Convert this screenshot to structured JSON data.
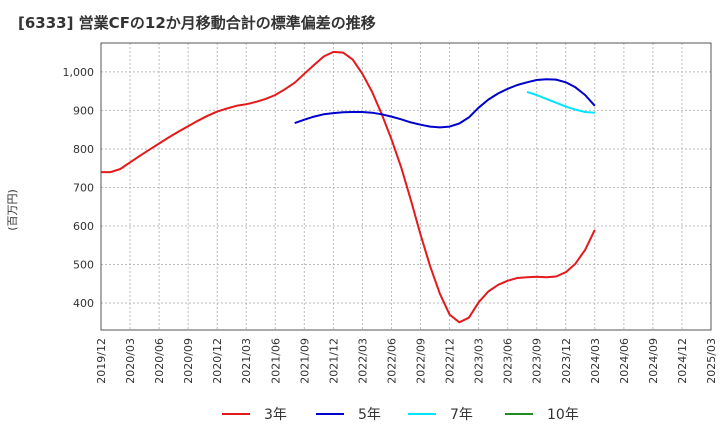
{
  "chart_data": {
    "type": "line",
    "title": "[6333]  営業CFの12か月移動合計の標準偏差の推移",
    "ylabel": "(百万円)",
    "xlabel": "",
    "ylim": [
      330,
      1075
    ],
    "yticks": [
      400,
      500,
      600,
      700,
      800,
      900,
      "1,000"
    ],
    "ytick_values": [
      400,
      500,
      600,
      700,
      800,
      900,
      1000
    ],
    "xticks": [
      "2019/12",
      "2020/03",
      "2020/06",
      "2020/09",
      "2020/12",
      "2021/03",
      "2021/06",
      "2021/09",
      "2021/12",
      "2022/03",
      "2022/06",
      "2022/09",
      "2022/12",
      "2023/03",
      "2023/06",
      "2023/09",
      "2023/12",
      "2024/03",
      "2024/06",
      "2024/09",
      "2024/12",
      "2025/03"
    ],
    "grid": true,
    "legend_position": "bottom",
    "series": [
      {
        "name": "3年",
        "color": "#e31a1c",
        "x": [
          "2019/12",
          "2020/01",
          "2020/02",
          "2020/03",
          "2020/04",
          "2020/05",
          "2020/06",
          "2020/07",
          "2020/08",
          "2020/09",
          "2020/10",
          "2020/11",
          "2020/12",
          "2021/01",
          "2021/02",
          "2021/03",
          "2021/04",
          "2021/05",
          "2021/06",
          "2021/07",
          "2021/08",
          "2021/09",
          "2021/10",
          "2021/11",
          "2021/12",
          "2022/01",
          "2022/02",
          "2022/03",
          "2022/04",
          "2022/05",
          "2022/06",
          "2022/07",
          "2022/08",
          "2022/09",
          "2022/10",
          "2022/11",
          "2022/12",
          "2023/01",
          "2023/02",
          "2023/03",
          "2023/04",
          "2023/05",
          "2023/06",
          "2023/07",
          "2023/08",
          "2023/09",
          "2023/10",
          "2023/11",
          "2023/12",
          "2024/01",
          "2024/02",
          "2024/03"
        ],
        "values": [
          740,
          740,
          748,
          765,
          782,
          798,
          814,
          830,
          845,
          859,
          873,
          886,
          897,
          905,
          912,
          916,
          922,
          930,
          940,
          955,
          972,
          995,
          1018,
          1040,
          1052,
          1050,
          1032,
          995,
          948,
          890,
          825,
          752,
          668,
          578,
          495,
          424,
          370,
          350,
          362,
          402,
          430,
          447,
          458,
          465,
          467,
          468,
          467,
          469,
          480,
          502,
          538,
          590
        ]
      },
      {
        "name": "5年",
        "color": "#0000cc",
        "x": [
          "2021/08",
          "2021/09",
          "2021/10",
          "2021/11",
          "2021/12",
          "2022/01",
          "2022/02",
          "2022/03",
          "2022/04",
          "2022/05",
          "2022/06",
          "2022/07",
          "2022/08",
          "2022/09",
          "2022/10",
          "2022/11",
          "2022/12",
          "2023/01",
          "2023/02",
          "2023/03",
          "2023/04",
          "2023/05",
          "2023/06",
          "2023/07",
          "2023/08",
          "2023/09",
          "2023/10",
          "2023/11",
          "2023/12",
          "2024/01",
          "2024/02",
          "2024/03"
        ],
        "values": [
          867,
          876,
          884,
          890,
          893,
          895,
          896,
          896,
          894,
          890,
          884,
          877,
          869,
          863,
          858,
          856,
          858,
          866,
          882,
          907,
          928,
          944,
          956,
          966,
          973,
          979,
          981,
          980,
          973,
          960,
          940,
          912
        ]
      },
      {
        "name": "7年",
        "color": "#00e5ff",
        "x": [
          "2023/08",
          "2023/09",
          "2023/10",
          "2023/11",
          "2023/12",
          "2024/01",
          "2024/02",
          "2024/03"
        ],
        "values": [
          948,
          940,
          930,
          920,
          910,
          902,
          896,
          894
        ]
      },
      {
        "name": "10年",
        "color": "#228b22",
        "x": [],
        "values": []
      }
    ]
  }
}
